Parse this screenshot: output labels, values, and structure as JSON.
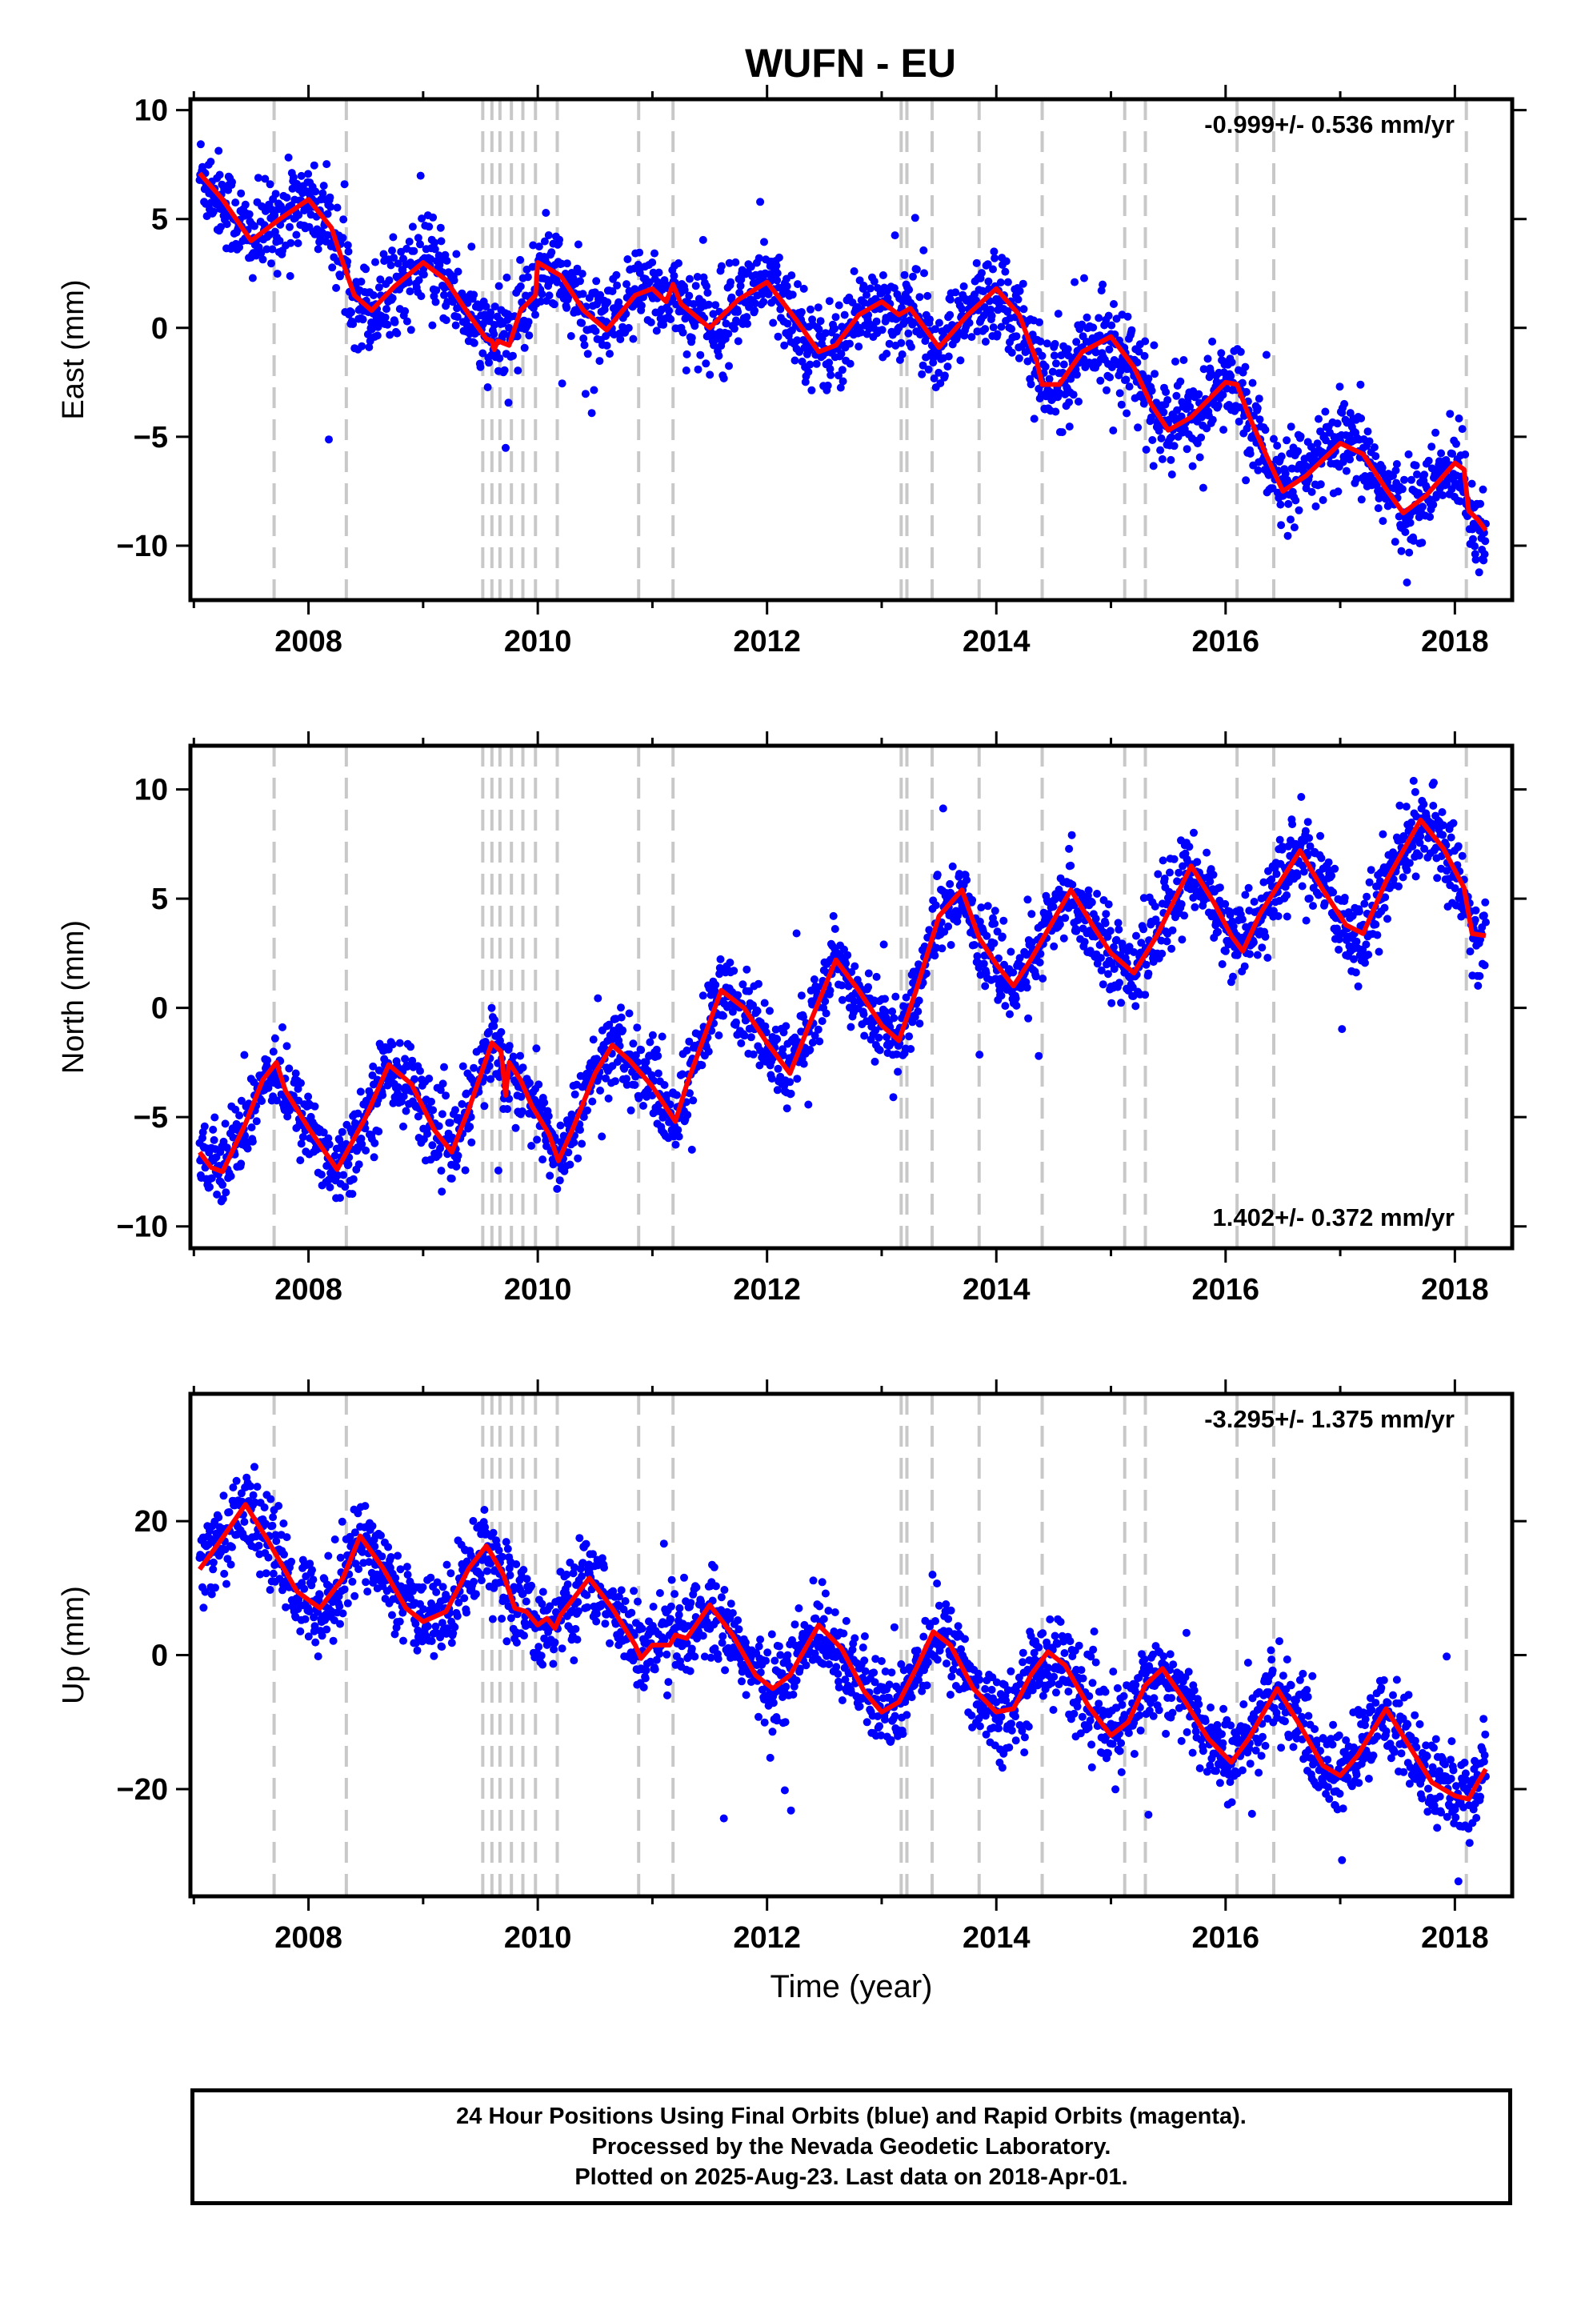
{
  "title": "WUFN - EU",
  "colors": {
    "data_points": "#0000ff",
    "model_line": "#ff0000",
    "event_lines": "#c8c8c8",
    "frame": "#000000"
  },
  "chart_data": [
    {
      "type": "scatter",
      "name": "East",
      "ylabel": "East (mm)",
      "ylim": [
        -12.5,
        10.5
      ],
      "yticks": [
        10,
        5,
        0,
        -5,
        -10
      ],
      "xlim": [
        2006.97,
        2018.5
      ],
      "xticks": [
        2008,
        2010,
        2012,
        2014,
        2016,
        2018
      ],
      "velocity_label": "-0.999+/- 0.536 mm/yr",
      "velocity_label_position": "top-right",
      "model": [
        [
          2007.05,
          7.1
        ],
        [
          2007.25,
          5.9
        ],
        [
          2007.5,
          4.0
        ],
        [
          2007.75,
          5.0
        ],
        [
          2008.0,
          5.9
        ],
        [
          2008.2,
          4.6
        ],
        [
          2008.3,
          3.0
        ],
        [
          2008.4,
          1.5
        ],
        [
          2008.55,
          0.8
        ],
        [
          2008.75,
          1.9
        ],
        [
          2009.0,
          3.0
        ],
        [
          2009.2,
          2.2
        ],
        [
          2009.4,
          0.6
        ],
        [
          2009.55,
          -0.5
        ],
        [
          2009.6,
          -0.6
        ],
        [
          2009.62,
          -1.0
        ],
        [
          2009.65,
          -0.6
        ],
        [
          2009.75,
          -0.8
        ],
        [
          2009.85,
          0.8
        ],
        [
          2009.98,
          1.5
        ],
        [
          2010.0,
          3.0
        ],
        [
          2010.2,
          2.4
        ],
        [
          2010.4,
          0.8
        ],
        [
          2010.6,
          -0.1
        ],
        [
          2010.85,
          1.5
        ],
        [
          2011.0,
          1.8
        ],
        [
          2011.12,
          1.2
        ],
        [
          2011.18,
          2.0
        ],
        [
          2011.25,
          1.1
        ],
        [
          2011.5,
          0.0
        ],
        [
          2011.75,
          1.3
        ],
        [
          2012.0,
          2.1
        ],
        [
          2012.25,
          0.4
        ],
        [
          2012.45,
          -1.1
        ],
        [
          2012.6,
          -0.8
        ],
        [
          2012.8,
          0.6
        ],
        [
          2013.0,
          1.2
        ],
        [
          2013.15,
          0.6
        ],
        [
          2013.25,
          0.9
        ],
        [
          2013.5,
          -0.9
        ],
        [
          2013.75,
          0.6
        ],
        [
          2014.0,
          1.8
        ],
        [
          2014.2,
          0.6
        ],
        [
          2014.35,
          -1.5
        ],
        [
          2014.4,
          -2.6
        ],
        [
          2014.55,
          -2.6
        ],
        [
          2014.75,
          -1.1
        ],
        [
          2015.0,
          -0.4
        ],
        [
          2015.2,
          -1.8
        ],
        [
          2015.35,
          -3.5
        ],
        [
          2015.5,
          -4.7
        ],
        [
          2015.7,
          -4.1
        ],
        [
          2016.0,
          -2.5
        ],
        [
          2016.1,
          -2.6
        ],
        [
          2016.2,
          -4.0
        ],
        [
          2016.35,
          -5.8
        ],
        [
          2016.5,
          -7.5
        ],
        [
          2016.7,
          -6.8
        ],
        [
          2017.0,
          -5.3
        ],
        [
          2017.2,
          -5.8
        ],
        [
          2017.4,
          -7.4
        ],
        [
          2017.55,
          -8.5
        ],
        [
          2017.75,
          -7.7
        ],
        [
          2018.0,
          -6.2
        ],
        [
          2018.08,
          -6.5
        ],
        [
          2018.12,
          -8.4
        ],
        [
          2018.2,
          -8.8
        ],
        [
          2018.27,
          -9.3
        ]
      ]
    },
    {
      "type": "scatter",
      "name": "North",
      "ylabel": "North (mm)",
      "ylim": [
        -11,
        12
      ],
      "yticks": [
        10,
        5,
        0,
        -5,
        -10
      ],
      "xlim": [
        2006.97,
        2018.5
      ],
      "xticks": [
        2008,
        2010,
        2012,
        2014,
        2016,
        2018
      ],
      "velocity_label": "1.402+/- 0.372 mm/yr",
      "velocity_label_position": "bottom-right",
      "model": [
        [
          2007.05,
          -6.6
        ],
        [
          2007.15,
          -7.3
        ],
        [
          2007.25,
          -7.5
        ],
        [
          2007.45,
          -5.3
        ],
        [
          2007.6,
          -3.3
        ],
        [
          2007.72,
          -2.5
        ],
        [
          2007.8,
          -3.8
        ],
        [
          2008.0,
          -5.5
        ],
        [
          2008.25,
          -7.4
        ],
        [
          2008.5,
          -5.0
        ],
        [
          2008.7,
          -2.6
        ],
        [
          2008.9,
          -3.5
        ],
        [
          2009.1,
          -5.6
        ],
        [
          2009.25,
          -6.6
        ],
        [
          2009.4,
          -4.6
        ],
        [
          2009.6,
          -1.6
        ],
        [
          2009.68,
          -2.0
        ],
        [
          2009.72,
          -4.0
        ],
        [
          2009.75,
          -2.5
        ],
        [
          2009.85,
          -3.3
        ],
        [
          2009.95,
          -4.5
        ],
        [
          2010.1,
          -5.8
        ],
        [
          2010.18,
          -7.0
        ],
        [
          2010.3,
          -5.6
        ],
        [
          2010.5,
          -3.0
        ],
        [
          2010.65,
          -1.7
        ],
        [
          2010.8,
          -2.4
        ],
        [
          2011.0,
          -3.6
        ],
        [
          2011.2,
          -5.2
        ],
        [
          2011.3,
          -3.5
        ],
        [
          2011.6,
          0.8
        ],
        [
          2011.8,
          0.0
        ],
        [
          2012.0,
          -1.6
        ],
        [
          2012.2,
          -3.0
        ],
        [
          2012.35,
          -1.0
        ],
        [
          2012.6,
          2.2
        ],
        [
          2012.8,
          0.8
        ],
        [
          2013.0,
          -0.8
        ],
        [
          2013.15,
          -1.5
        ],
        [
          2013.3,
          0.8
        ],
        [
          2013.5,
          4.2
        ],
        [
          2013.7,
          5.4
        ],
        [
          2013.85,
          3.2
        ],
        [
          2014.0,
          2.0
        ],
        [
          2014.15,
          1.0
        ],
        [
          2014.3,
          2.2
        ],
        [
          2014.65,
          5.4
        ],
        [
          2014.85,
          3.7
        ],
        [
          2015.0,
          2.5
        ],
        [
          2015.2,
          1.6
        ],
        [
          2015.4,
          3.3
        ],
        [
          2015.7,
          6.5
        ],
        [
          2015.9,
          4.8
        ],
        [
          2016.05,
          3.3
        ],
        [
          2016.15,
          2.6
        ],
        [
          2016.3,
          4.3
        ],
        [
          2016.65,
          7.2
        ],
        [
          2016.85,
          5.4
        ],
        [
          2017.05,
          3.8
        ],
        [
          2017.2,
          3.4
        ],
        [
          2017.4,
          5.8
        ],
        [
          2017.7,
          8.6
        ],
        [
          2017.9,
          7.3
        ],
        [
          2018.08,
          5.5
        ],
        [
          2018.15,
          3.4
        ],
        [
          2018.27,
          3.3
        ]
      ]
    },
    {
      "type": "scatter",
      "name": "Up",
      "ylabel": "Up (mm)",
      "ylim": [
        -36,
        39
      ],
      "yticks": [
        20,
        0,
        -20
      ],
      "xlim": [
        2006.97,
        2018.5
      ],
      "xticks": [
        2008,
        2010,
        2012,
        2014,
        2016,
        2018
      ],
      "xlabel": "Time (year)",
      "velocity_label": "-3.295+/- 1.375 mm/yr",
      "velocity_label_position": "top-right",
      "model": [
        [
          2007.05,
          12.8
        ],
        [
          2007.25,
          17.5
        ],
        [
          2007.45,
          22.5
        ],
        [
          2007.65,
          17.0
        ],
        [
          2007.9,
          9.5
        ],
        [
          2008.1,
          7.0
        ],
        [
          2008.3,
          11.5
        ],
        [
          2008.45,
          17.8
        ],
        [
          2008.65,
          13.0
        ],
        [
          2008.85,
          7.0
        ],
        [
          2009.0,
          5.0
        ],
        [
          2009.2,
          6.5
        ],
        [
          2009.4,
          13.0
        ],
        [
          2009.55,
          16.3
        ],
        [
          2009.6,
          15.0
        ],
        [
          2009.7,
          12.0
        ],
        [
          2009.8,
          7.0
        ],
        [
          2009.9,
          6.5
        ],
        [
          2010.0,
          4.5
        ],
        [
          2010.08,
          5.5
        ],
        [
          2010.15,
          4.0
        ],
        [
          2010.2,
          6.0
        ],
        [
          2010.45,
          11.5
        ],
        [
          2010.65,
          7.0
        ],
        [
          2010.85,
          1.5
        ],
        [
          2010.9,
          -0.5
        ],
        [
          2011.0,
          1.5
        ],
        [
          2011.15,
          1.5
        ],
        [
          2011.2,
          3.0
        ],
        [
          2011.3,
          2.5
        ],
        [
          2011.5,
          7.5
        ],
        [
          2011.7,
          3.0
        ],
        [
          2011.9,
          -3.0
        ],
        [
          2012.05,
          -5.0
        ],
        [
          2012.2,
          -3.0
        ],
        [
          2012.45,
          4.5
        ],
        [
          2012.65,
          1.0
        ],
        [
          2012.85,
          -5.5
        ],
        [
          2013.0,
          -8.5
        ],
        [
          2013.15,
          -7.0
        ],
        [
          2013.3,
          -2.0
        ],
        [
          2013.45,
          3.5
        ],
        [
          2013.6,
          1.5
        ],
        [
          2013.8,
          -5.0
        ],
        [
          2014.0,
          -8.5
        ],
        [
          2014.15,
          -8.0
        ],
        [
          2014.3,
          -3.0
        ],
        [
          2014.45,
          0.5
        ],
        [
          2014.6,
          -1.5
        ],
        [
          2014.8,
          -7.5
        ],
        [
          2015.0,
          -12.0
        ],
        [
          2015.15,
          -10.0
        ],
        [
          2015.3,
          -4.5
        ],
        [
          2015.45,
          -2.0
        ],
        [
          2015.65,
          -7.0
        ],
        [
          2015.85,
          -12.5
        ],
        [
          2016.05,
          -16.0
        ],
        [
          2016.2,
          -12.5
        ],
        [
          2016.45,
          -5.0
        ],
        [
          2016.65,
          -10.5
        ],
        [
          2016.85,
          -16.5
        ],
        [
          2017.0,
          -18.0
        ],
        [
          2017.15,
          -15.0
        ],
        [
          2017.4,
          -8.0
        ],
        [
          2017.6,
          -13.5
        ],
        [
          2017.8,
          -19.0
        ],
        [
          2018.0,
          -21.0
        ],
        [
          2018.12,
          -21.5
        ],
        [
          2018.2,
          -19.0
        ],
        [
          2018.27,
          -17.0
        ]
      ]
    }
  ],
  "event_epochs": [
    2007.7,
    2008.33,
    2009.52,
    2009.6,
    2009.67,
    2009.77,
    2009.87,
    2009.98,
    2010.17,
    2010.88,
    2011.18,
    2013.17,
    2013.22,
    2013.44,
    2013.85,
    2014.4,
    2015.12,
    2015.3,
    2016.1,
    2016.42,
    2018.1
  ],
  "footer": {
    "line1": "24 Hour Positions Using Final Orbits (blue) and Rapid Orbits (magenta).",
    "line2": "Processed by the Nevada Geodetic Laboratory.",
    "line3": "Plotted on 2025-Aug-23. Last data on 2018-Apr-01."
  }
}
